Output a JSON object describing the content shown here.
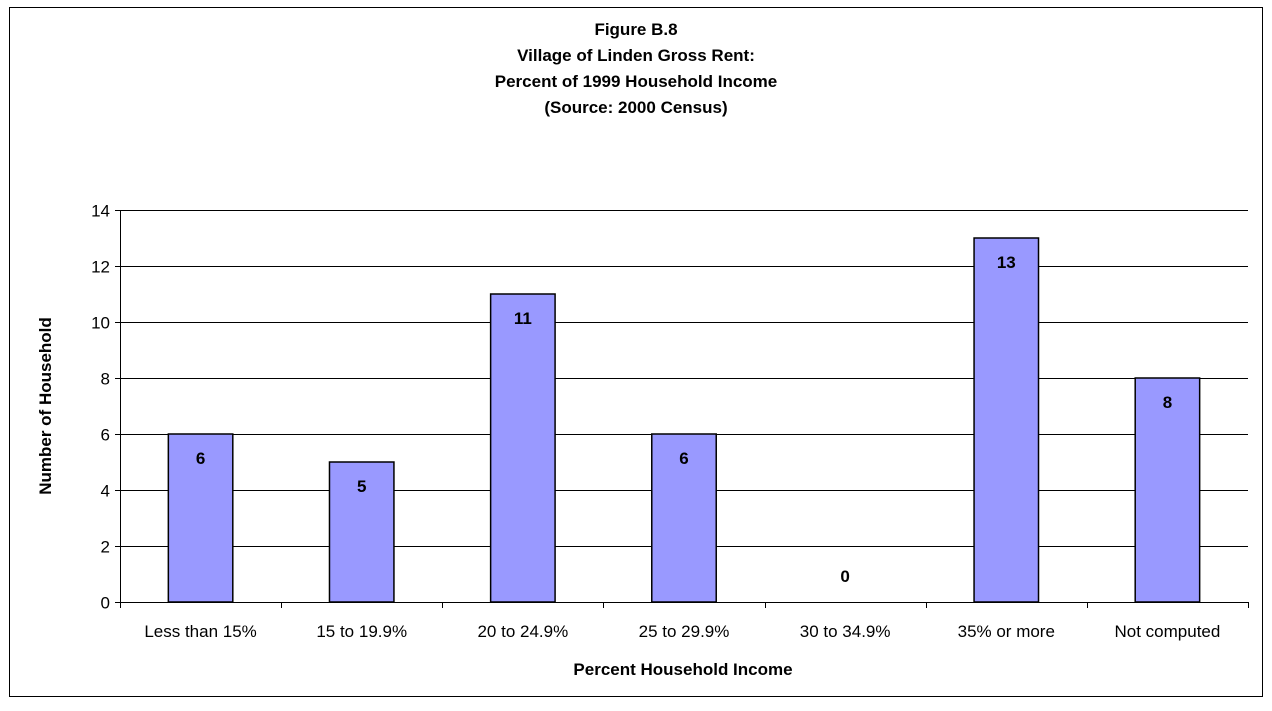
{
  "chart_data": {
    "type": "bar",
    "title_lines": [
      "Figure B.8",
      "Village of Linden Gross Rent:",
      "Percent of 1999 Household Income",
      "(Source:  2000 Census)"
    ],
    "xlabel": "Percent Household Income",
    "ylabel": "Number of Household",
    "categories": [
      "Less than 15%",
      "15 to 19.9%",
      "20 to 24.9%",
      "25 to 29.9%",
      "30 to 34.9%",
      "35% or more",
      "Not computed"
    ],
    "values": [
      6,
      5,
      11,
      6,
      0,
      13,
      8
    ],
    "data_labels": [
      "6",
      "5",
      "11",
      "6",
      "0",
      "13",
      "8"
    ],
    "ylim": [
      0,
      14
    ],
    "yticks": [
      "0",
      "2",
      "4",
      "6",
      "8",
      "10",
      "12",
      "14"
    ],
    "grid": true,
    "legend": "none",
    "colors": {
      "bar_fill": "#9999ff",
      "bar_stroke": "#000000",
      "gridline": "#000000",
      "background": "#ffffff"
    }
  }
}
